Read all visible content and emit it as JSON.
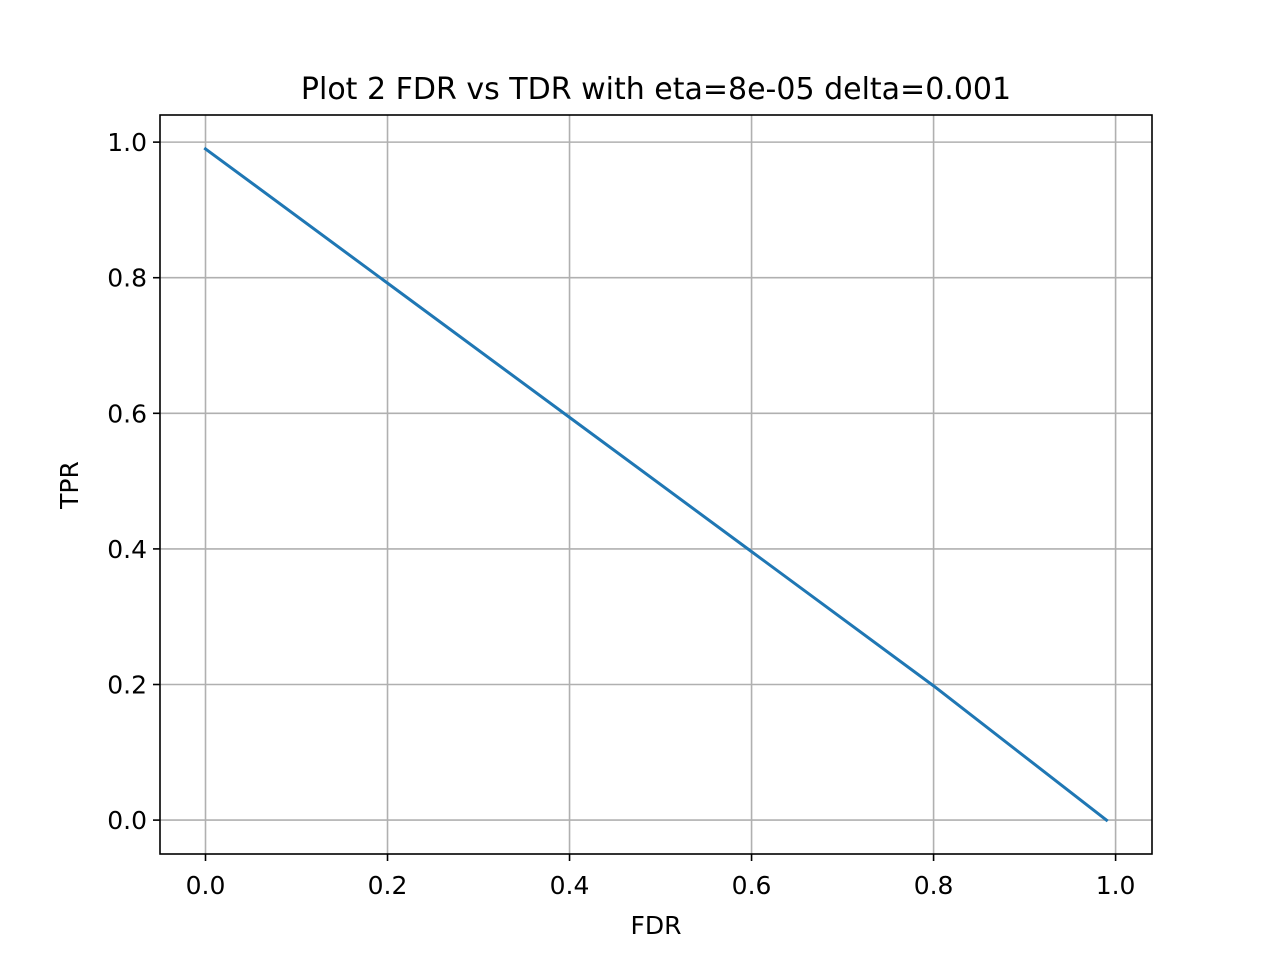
{
  "chart_data": {
    "type": "line",
    "title": "Plot 2 FDR vs TDR with eta=8e-05 delta=0.001",
    "xlabel": "FDR",
    "ylabel": "TPR",
    "xlim": [
      -0.05,
      1.04
    ],
    "ylim": [
      -0.05,
      1.04
    ],
    "xticks": [
      0.0,
      0.2,
      0.4,
      0.6,
      0.8,
      1.0
    ],
    "yticks": [
      0.0,
      0.2,
      0.4,
      0.6,
      0.8,
      1.0
    ],
    "xtick_labels": [
      "0.0",
      "0.2",
      "0.4",
      "0.6",
      "0.8",
      "1.0"
    ],
    "ytick_labels": [
      "0.0",
      "0.2",
      "0.4",
      "0.6",
      "0.8",
      "1.0"
    ],
    "grid": true,
    "legend": false,
    "series": [
      {
        "color": "#1f77b4",
        "x": [
          0.0,
          0.2,
          0.4,
          0.6,
          0.8,
          0.99
        ],
        "y": [
          0.99,
          0.792,
          0.594,
          0.396,
          0.198,
          0.0
        ]
      }
    ]
  }
}
